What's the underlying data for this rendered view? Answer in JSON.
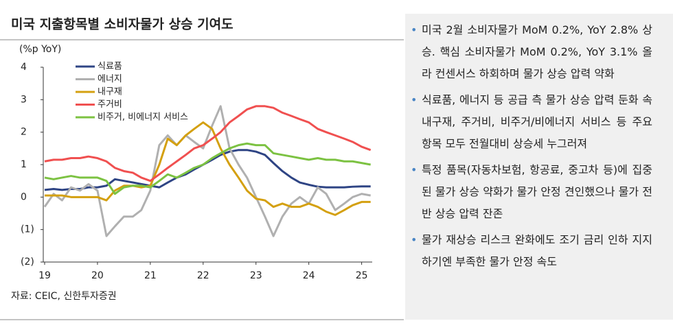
{
  "chart_data": {
    "type": "line",
    "title": "미국 지출항목별 소비자물가 상승 기여도",
    "y_label": "(%p YoY)",
    "source": "자료: CEIC, 신한투자증권",
    "x": [
      19,
      19.17,
      19.33,
      19.5,
      19.67,
      19.83,
      20,
      20.17,
      20.33,
      20.5,
      20.67,
      20.83,
      21,
      21.17,
      21.33,
      21.5,
      21.67,
      21.83,
      22,
      22.17,
      22.33,
      22.5,
      22.67,
      22.83,
      23,
      23.17,
      23.33,
      23.5,
      23.67,
      23.83,
      24,
      24.17,
      24.33,
      24.5,
      24.67,
      24.83,
      25,
      25.17
    ],
    "xlim": [
      19,
      25.2
    ],
    "xticks": [
      19,
      20,
      21,
      22,
      23,
      24,
      25
    ],
    "ylim": [
      -2,
      4
    ],
    "yticks": [
      4,
      3,
      2,
      1,
      0,
      {
        "value": -1,
        "label": "(1)"
      },
      {
        "value": -2,
        "label": "(2)"
      }
    ],
    "legend": "top-left",
    "series": [
      {
        "name": "식료품",
        "color": "#2e4484",
        "values": [
          0.22,
          0.25,
          0.22,
          0.25,
          0.25,
          0.3,
          0.3,
          0.35,
          0.55,
          0.5,
          0.45,
          0.4,
          0.35,
          0.3,
          0.45,
          0.6,
          0.7,
          0.85,
          1.0,
          1.15,
          1.3,
          1.4,
          1.45,
          1.45,
          1.4,
          1.3,
          1.05,
          0.8,
          0.6,
          0.45,
          0.38,
          0.32,
          0.3,
          0.3,
          0.3,
          0.32,
          0.33,
          0.33
        ]
      },
      {
        "name": "에너지",
        "color": "#b0b0b0",
        "values": [
          -0.3,
          0.1,
          -0.1,
          0.3,
          0.2,
          0.4,
          0.2,
          -1.2,
          -0.9,
          -0.6,
          -0.6,
          -0.4,
          0.2,
          1.6,
          1.9,
          1.6,
          1.9,
          1.7,
          1.5,
          2.2,
          2.8,
          1.5,
          1.0,
          0.6,
          0.0,
          -0.6,
          -1.2,
          -0.6,
          -0.2,
          0.0,
          -0.2,
          0.3,
          0.1,
          -0.4,
          -0.2,
          0.0,
          0.1,
          0.05
        ]
      },
      {
        "name": "내구재",
        "color": "#d4a010",
        "values": [
          0.05,
          0.05,
          0.05,
          0.0,
          0.0,
          0.0,
          0.0,
          -0.1,
          0.2,
          0.35,
          0.35,
          0.3,
          0.35,
          1.0,
          1.8,
          1.6,
          1.9,
          2.1,
          2.3,
          2.1,
          1.5,
          1.0,
          0.6,
          0.2,
          -0.05,
          -0.1,
          -0.3,
          -0.2,
          -0.3,
          -0.3,
          -0.2,
          -0.3,
          -0.45,
          -0.55,
          -0.4,
          -0.25,
          -0.15,
          -0.15
        ]
      },
      {
        "name": "주거비",
        "color": "#f05050",
        "values": [
          1.1,
          1.15,
          1.15,
          1.2,
          1.2,
          1.25,
          1.2,
          1.1,
          0.9,
          0.8,
          0.75,
          0.6,
          0.5,
          0.7,
          0.9,
          1.1,
          1.3,
          1.5,
          1.6,
          1.8,
          2.0,
          2.3,
          2.5,
          2.7,
          2.8,
          2.8,
          2.75,
          2.6,
          2.5,
          2.4,
          2.3,
          2.1,
          2.0,
          1.9,
          1.8,
          1.7,
          1.55,
          1.45
        ]
      },
      {
        "name": "비주거, 비에너지 서비스",
        "color": "#7cc242",
        "values": [
          0.6,
          0.55,
          0.6,
          0.65,
          0.6,
          0.6,
          0.6,
          0.5,
          0.1,
          0.3,
          0.35,
          0.35,
          0.3,
          0.5,
          0.7,
          0.6,
          0.75,
          0.9,
          1.0,
          1.2,
          1.35,
          1.5,
          1.6,
          1.65,
          1.6,
          1.6,
          1.35,
          1.3,
          1.25,
          1.2,
          1.15,
          1.2,
          1.15,
          1.15,
          1.1,
          1.1,
          1.05,
          1.0
        ]
      }
    ]
  },
  "bullets": [
    "미국 2월 소비자물가 MoM 0.2%, YoY 2.8% 상승. 핵심 소비자물가 MoM 0.2%, YoY 3.1% 올라 컨센서스 하회하며 물가 상승 압력 약화",
    "식료품, 에너지 등 공급 측 물가 상승 압력 둔화 속 내구재, 주거비, 비주거/비에너지 서비스 등 주요 항목 모두 전월대비 상승세 누그러져",
    "특정 품목(자동차보험, 항공료, 중고차 등)에 집중된 물가 상승 약화가 물가 안정 견인했으나 물가 전반 상승 압력 잔존",
    "물가 재상승 리스크 완화에도 조기 금리 인하 지지하기엔 부족한 물가 안정 속도"
  ]
}
